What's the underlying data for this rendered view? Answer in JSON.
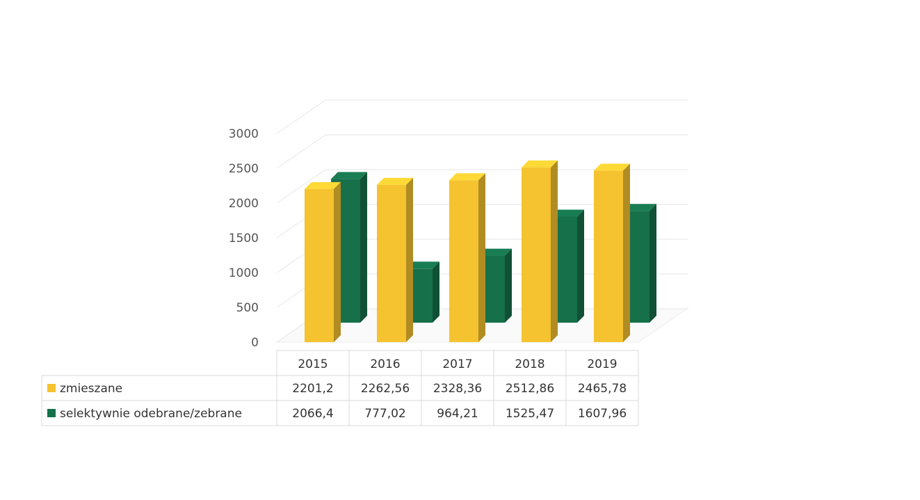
{
  "chart_data": {
    "type": "bar",
    "subtype": "3d-clustered-column-with-data-table",
    "categories": [
      "2015",
      "2016",
      "2017",
      "2018",
      "2019"
    ],
    "series": [
      {
        "name": "zmieszane",
        "color": "#F5C230",
        "values": [
          2201.2,
          2262.56,
          2328.36,
          2512.86,
          2465.78
        ],
        "labels": [
          "2201,2",
          "2262,56",
          "2328,36",
          "2512,86",
          "2465,78"
        ]
      },
      {
        "name": "selektywnie odebrane/zebrane",
        "color": "#16704A",
        "values": [
          2066.4,
          777.02,
          964.21,
          1525.47,
          1607.96
        ],
        "labels": [
          "2066,4",
          "777,02",
          "964,21",
          "1525,47",
          "1607,96"
        ]
      }
    ],
    "y_ticks": [
      "0",
      "500",
      "1000",
      "1500",
      "2000",
      "2500",
      "3000"
    ],
    "ylim": [
      0,
      3000
    ],
    "grid": true,
    "legend": "data-table",
    "title": "",
    "xlabel": "",
    "ylabel": ""
  }
}
